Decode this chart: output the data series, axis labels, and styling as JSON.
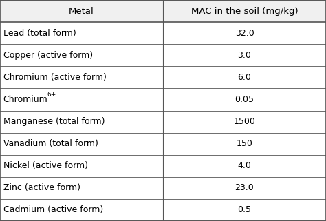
{
  "col1_header": "Metal",
  "col2_header": "MAC in the soil (mg/kg)",
  "rows": [
    [
      "Lead (total form)",
      "32.0"
    ],
    [
      "Copper (active form)",
      "3.0"
    ],
    [
      "Chromium (active form)",
      "6.0"
    ],
    [
      "Chromium",
      "0.05"
    ],
    [
      "Manganese (total form)",
      "1500"
    ],
    [
      "Vanadium (total form)",
      "150"
    ],
    [
      "Nickel (active form)",
      "4.0"
    ],
    [
      "Zinc (active form)",
      "23.0"
    ],
    [
      "Cadmium (active form)",
      "0.5"
    ]
  ],
  "chromium_row": 3,
  "col_split": 0.5,
  "bg_color": "#ffffff",
  "header_bg": "#f0f0f0",
  "line_color": "#555555",
  "text_color": "#000000",
  "font_size": 9.0,
  "header_font_size": 9.5,
  "superscript": "6+",
  "superscript_size": 6.5
}
